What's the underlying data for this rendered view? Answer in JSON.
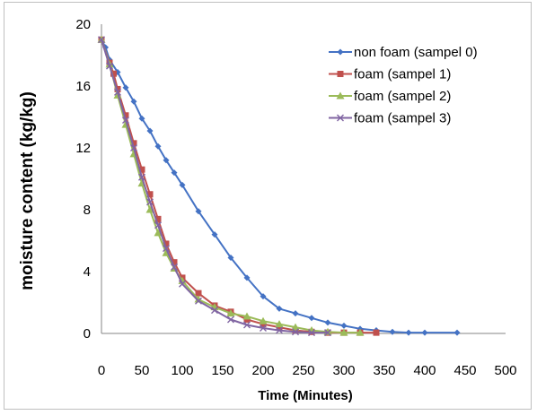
{
  "chart_data": {
    "type": "line",
    "title": "",
    "xlabel": "Time (Minutes)",
    "ylabel": "moisture content (kg/kg)",
    "xlim": [
      0,
      500
    ],
    "ylim": [
      0,
      20
    ],
    "x_ticks": [
      0,
      50,
      100,
      150,
      200,
      250,
      300,
      350,
      400,
      450,
      500
    ],
    "y_ticks": [
      0,
      4,
      8,
      12,
      16,
      20
    ],
    "grid": false,
    "legend_position": "top-right",
    "series": [
      {
        "name": "non foam (sampel 0)",
        "color": "#4472C4",
        "marker": "diamond",
        "points": [
          [
            0,
            19
          ],
          [
            5,
            18.5
          ],
          [
            10,
            17.7
          ],
          [
            20,
            16.9
          ],
          [
            30,
            15.9
          ],
          [
            40,
            15
          ],
          [
            50,
            13.9
          ],
          [
            60,
            13.1
          ],
          [
            70,
            12.1
          ],
          [
            80,
            11.2
          ],
          [
            90,
            10.4
          ],
          [
            100,
            9.6
          ],
          [
            120,
            7.9
          ],
          [
            140,
            6.4
          ],
          [
            160,
            4.9
          ],
          [
            180,
            3.6
          ],
          [
            200,
            2.4
          ],
          [
            220,
            1.6
          ],
          [
            240,
            1.3
          ],
          [
            260,
            1
          ],
          [
            280,
            0.7
          ],
          [
            300,
            0.5
          ],
          [
            320,
            0.3
          ],
          [
            340,
            0.2
          ],
          [
            360,
            0.1
          ],
          [
            380,
            0.05
          ],
          [
            400,
            0.05
          ],
          [
            440,
            0.05
          ]
        ]
      },
      {
        "name": "foam (sampel 1)",
        "color": "#C0504D",
        "marker": "square",
        "points": [
          [
            0,
            19
          ],
          [
            10,
            17.5
          ],
          [
            15,
            16.8
          ],
          [
            20,
            15.8
          ],
          [
            30,
            14.1
          ],
          [
            40,
            12.3
          ],
          [
            50,
            10.6
          ],
          [
            60,
            9
          ],
          [
            70,
            7.4
          ],
          [
            80,
            5.8
          ],
          [
            90,
            4.6
          ],
          [
            100,
            3.6
          ],
          [
            120,
            2.6
          ],
          [
            140,
            1.8
          ],
          [
            160,
            1.4
          ],
          [
            180,
            0.9
          ],
          [
            200,
            0.6
          ],
          [
            220,
            0.4
          ],
          [
            240,
            0.2
          ],
          [
            260,
            0.1
          ],
          [
            280,
            0.05
          ],
          [
            300,
            0.05
          ],
          [
            320,
            0.05
          ],
          [
            340,
            0.05
          ]
        ]
      },
      {
        "name": "foam (sampel 2)",
        "color": "#9BBB59",
        "marker": "triangle",
        "points": [
          [
            0,
            19
          ],
          [
            10,
            17.4
          ],
          [
            20,
            15.4
          ],
          [
            30,
            13.5
          ],
          [
            40,
            11.6
          ],
          [
            50,
            9.7
          ],
          [
            60,
            8
          ],
          [
            70,
            6.5
          ],
          [
            80,
            5.2
          ],
          [
            90,
            4.2
          ],
          [
            100,
            3.4
          ],
          [
            120,
            2.2
          ],
          [
            140,
            1.7
          ],
          [
            160,
            1.3
          ],
          [
            180,
            1.1
          ],
          [
            200,
            0.8
          ],
          [
            220,
            0.6
          ],
          [
            240,
            0.4
          ],
          [
            260,
            0.2
          ],
          [
            280,
            0.1
          ],
          [
            300,
            0.05
          ],
          [
            320,
            0.05
          ]
        ]
      },
      {
        "name": "foam (sampel 3)",
        "color": "#8064A2",
        "marker": "x",
        "points": [
          [
            0,
            19
          ],
          [
            10,
            17.3
          ],
          [
            20,
            15.6
          ],
          [
            30,
            13.8
          ],
          [
            40,
            12
          ],
          [
            50,
            10.1
          ],
          [
            60,
            8.5
          ],
          [
            70,
            7
          ],
          [
            80,
            5.5
          ],
          [
            90,
            4.3
          ],
          [
            100,
            3.2
          ],
          [
            120,
            2.1
          ],
          [
            140,
            1.5
          ],
          [
            160,
            0.9
          ],
          [
            180,
            0.55
          ],
          [
            200,
            0.35
          ],
          [
            220,
            0.2
          ],
          [
            240,
            0.1
          ],
          [
            260,
            0.05
          ],
          [
            280,
            0.05
          ]
        ]
      }
    ]
  }
}
